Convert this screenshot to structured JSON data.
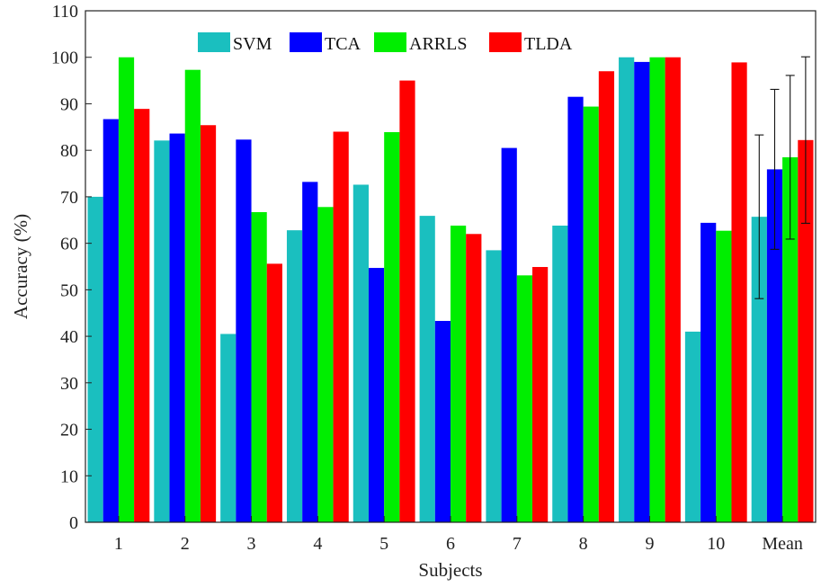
{
  "chart_data": {
    "type": "bar",
    "title": "",
    "xlabel": "Subjects",
    "ylabel": "Accuracy (%)",
    "ylim": [
      0,
      110
    ],
    "yticks": [
      0,
      10,
      20,
      30,
      40,
      50,
      60,
      70,
      80,
      90,
      100,
      110
    ],
    "categories": [
      "1",
      "2",
      "3",
      "4",
      "5",
      "6",
      "7",
      "8",
      "9",
      "10",
      "Mean"
    ],
    "grid": false,
    "legend_position": "top",
    "series": [
      {
        "name": "SVM",
        "color": "#1abfbf",
        "values": [
          70.0,
          82.1,
          40.5,
          62.8,
          72.6,
          65.9,
          58.5,
          63.8,
          100.0,
          41.0,
          65.7
        ],
        "error": [
          null,
          null,
          null,
          null,
          null,
          null,
          null,
          null,
          null,
          null,
          17.6
        ]
      },
      {
        "name": "TCA",
        "color": "#0000ff",
        "values": [
          86.7,
          83.6,
          82.3,
          73.2,
          54.7,
          43.3,
          80.5,
          91.5,
          99.0,
          64.4,
          75.9
        ],
        "error": [
          null,
          null,
          null,
          null,
          null,
          null,
          null,
          null,
          null,
          null,
          17.2
        ]
      },
      {
        "name": "ARRLS",
        "color": "#00ee00",
        "values": [
          100.0,
          97.3,
          66.7,
          67.8,
          83.9,
          63.8,
          53.1,
          89.4,
          100.0,
          62.7,
          78.5
        ],
        "error": [
          null,
          null,
          null,
          null,
          null,
          null,
          null,
          null,
          null,
          null,
          17.6
        ]
      },
      {
        "name": "TLDA",
        "color": "#ff0000",
        "values": [
          88.9,
          85.4,
          55.6,
          84.0,
          95.0,
          62.0,
          54.9,
          97.0,
          100.0,
          98.9,
          82.2
        ],
        "error": [
          null,
          null,
          null,
          null,
          null,
          null,
          null,
          null,
          null,
          null,
          17.9
        ]
      }
    ]
  }
}
